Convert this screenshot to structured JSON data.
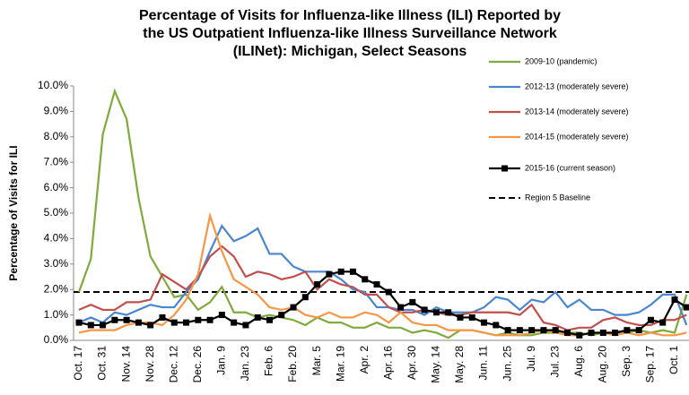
{
  "chart_data": {
    "type": "line",
    "title": [
      "Percentage of Visits for Influenza-like Illness (ILI) Reported by",
      "the US Outpatient Influenza-like Illness Surveillance Network",
      "(ILINet): Michigan, Select Seasons"
    ],
    "y_label": "Percentage of Visits for ILI",
    "categories": [
      "Oct. 17",
      null,
      "Oct. 31",
      null,
      "Nov. 14",
      null,
      "Nov. 28",
      null,
      "Dec. 12",
      null,
      "Dec. 26",
      null,
      "Jan. 9",
      null,
      "Jan. 23",
      null,
      "Feb. 6",
      null,
      "Feb. 20",
      null,
      "Mar. 5",
      null,
      "Mar. 19",
      null,
      "Apr. 2",
      null,
      "Apr. 16",
      null,
      "Apr. 30",
      null,
      "May. 14",
      null,
      "May. 28",
      null,
      "Jun. 11",
      null,
      "Jun. 25",
      null,
      "Jul. 9",
      null,
      "Jul. 23",
      null,
      "Aug. 6",
      null,
      "Aug. 20",
      null,
      "Sep. 3",
      null,
      "Sep. 17",
      null,
      "Oct. 1",
      null
    ],
    "ylim": [
      0,
      10
    ],
    "yticks": [
      {
        "value": 0,
        "label": "0.0%"
      },
      {
        "value": 1,
        "label": "1.0%"
      },
      {
        "value": 2,
        "label": "2.0%"
      },
      {
        "value": 3,
        "label": "3.0%"
      },
      {
        "value": 4,
        "label": "4.0%"
      },
      {
        "value": 5,
        "label": "5.0%"
      },
      {
        "value": 6,
        "label": "6.0%"
      },
      {
        "value": 7,
        "label": "7.0%"
      },
      {
        "value": 8,
        "label": "8.0%"
      },
      {
        "value": 9,
        "label": "9.0%"
      },
      {
        "value": 10,
        "label": "10.0%"
      }
    ],
    "legend": "upper right",
    "series": [
      {
        "name": "2009-10 (pandemic)",
        "color": "#7eab3b",
        "values": [
          1.9,
          3.2,
          8.1,
          9.8,
          8.7,
          5.6,
          3.3,
          2.5,
          1.7,
          1.8,
          1.2,
          1.5,
          2.1,
          1.1,
          1.1,
          0.9,
          1.0,
          0.9,
          0.8,
          0.6,
          0.9,
          0.7,
          0.7,
          0.5,
          0.5,
          0.7,
          0.5,
          0.5,
          0.3,
          0.4,
          0.3,
          0.1,
          0.4,
          0.4,
          0.3,
          0.2,
          0.3,
          0.2,
          0.2,
          0.3,
          0.3,
          0.3,
          0.3,
          0.2,
          0.3,
          0.3,
          0.3,
          0.4,
          0.3,
          0.4,
          0.3,
          1.8
        ]
      },
      {
        "name": "2012-13 (moderately severe)",
        "color": "#4a86d0",
        "values": [
          0.7,
          0.9,
          0.7,
          1.1,
          1.0,
          1.2,
          1.4,
          1.3,
          1.3,
          1.9,
          2.4,
          3.5,
          4.5,
          3.9,
          4.1,
          4.4,
          3.4,
          3.4,
          2.9,
          2.7,
          2.7,
          2.7,
          2.4,
          2.0,
          1.9,
          1.3,
          1.3,
          1.2,
          1.2,
          1.0,
          1.3,
          1.1,
          1.1,
          1.1,
          1.3,
          1.7,
          1.6,
          1.2,
          1.6,
          1.5,
          1.9,
          1.3,
          1.6,
          1.2,
          1.2,
          1.0,
          1.0,
          1.1,
          1.4,
          1.8,
          1.8,
          0.6
        ]
      },
      {
        "name": "2013-14 (moderately severe)",
        "color": "#c0504d",
        "values": [
          1.2,
          1.4,
          1.2,
          1.2,
          1.5,
          1.5,
          1.6,
          2.6,
          2.3,
          2.0,
          2.5,
          3.3,
          3.7,
          3.3,
          2.5,
          2.7,
          2.6,
          2.4,
          2.5,
          2.7,
          2.0,
          2.4,
          2.2,
          2.1,
          1.8,
          1.8,
          1.3,
          1.1,
          1.1,
          1.2,
          1.1,
          1.0,
          1.0,
          1.1,
          1.1,
          1.1,
          1.1,
          1.0,
          1.4,
          0.7,
          0.6,
          0.4,
          0.5,
          0.5,
          0.8,
          0.9,
          0.7,
          0.6,
          0.6,
          0.8,
          0.8,
          1.0
        ]
      },
      {
        "name": "2014-15 (moderately severe)",
        "color": "#f79646",
        "values": [
          0.3,
          0.4,
          0.4,
          0.4,
          0.6,
          0.7,
          0.7,
          0.6,
          1.0,
          1.6,
          2.6,
          4.9,
          3.5,
          2.4,
          2.1,
          1.8,
          1.3,
          1.2,
          1.3,
          1.0,
          0.9,
          1.1,
          0.9,
          0.9,
          1.1,
          1.0,
          0.7,
          1.1,
          0.7,
          0.6,
          0.6,
          0.4,
          0.4,
          0.4,
          0.3,
          0.2,
          0.2,
          0.2,
          0.3,
          0.4,
          0.3,
          0.2,
          0.2,
          0.3,
          0.3,
          0.2,
          0.3,
          0.2,
          0.3,
          0.2,
          0.2,
          0.3
        ]
      },
      {
        "name": "2015-16 (current season)",
        "color": "#000000",
        "markers": true,
        "values": [
          0.7,
          0.6,
          0.6,
          0.8,
          0.8,
          0.7,
          0.6,
          0.9,
          0.7,
          0.7,
          0.8,
          0.8,
          1.0,
          0.7,
          0.6,
          0.9,
          0.8,
          1.0,
          1.3,
          1.7,
          2.2,
          2.6,
          2.7,
          2.7,
          2.4,
          2.2,
          1.9,
          1.3,
          1.5,
          1.2,
          1.1,
          1.1,
          0.9,
          0.9,
          0.7,
          0.6,
          0.4,
          0.4,
          0.4,
          0.4,
          0.4,
          0.3,
          0.2,
          0.3,
          0.3,
          0.3,
          0.4,
          0.4,
          0.8,
          0.7,
          1.6,
          1.3
        ]
      }
    ],
    "baseline": {
      "name": "Region 5 Baseline",
      "value": 1.9,
      "color": "#000000"
    }
  }
}
